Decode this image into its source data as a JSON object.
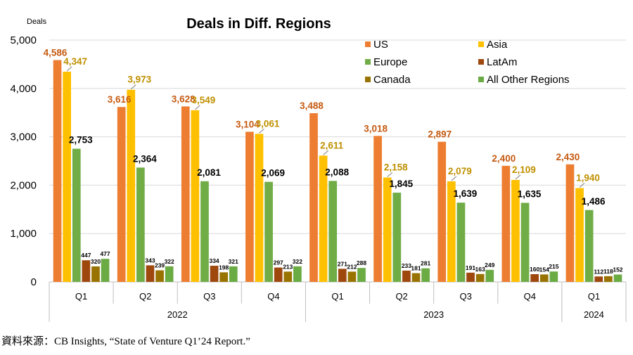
{
  "chart_data": {
    "type": "bar",
    "title": "Deals in Diff. Regions",
    "ylabel": "Deals",
    "ylim": [
      0,
      5000
    ],
    "yticks": [
      "0",
      "1,000",
      "2,000",
      "3,000",
      "4,000",
      "5,000"
    ],
    "grid": true,
    "legend_position": "top-right",
    "groups": [
      {
        "year": "2022",
        "quarters": [
          "Q1",
          "Q2",
          "Q3",
          "Q4"
        ]
      },
      {
        "year": "2023",
        "quarters": [
          "Q1",
          "Q2",
          "Q3",
          "Q4"
        ]
      },
      {
        "year": "2024",
        "quarters": [
          "Q1"
        ]
      }
    ],
    "series": [
      {
        "name": "US",
        "color": "#ED7D31",
        "label_color": "#C55A11",
        "values": [
          4586,
          3616,
          3628,
          3104,
          3488,
          3018,
          2897,
          2400,
          2430
        ],
        "labels": [
          "4,586",
          "3,616",
          "3,628",
          "3,104",
          "3,488",
          "3,018",
          "2,897",
          "2,400",
          "2,430"
        ]
      },
      {
        "name": "Asia",
        "color": "#FFC000",
        "label_color": "#BF9000",
        "values": [
          4347,
          3973,
          3549,
          3061,
          2611,
          2158,
          2079,
          2109,
          1940
        ],
        "labels": [
          "4,347",
          "3,973",
          "3,549",
          "3,061",
          "2,611",
          "2,158",
          "2,079",
          "2,109",
          "1,940"
        ]
      },
      {
        "name": "Europe",
        "color": "#70AD47",
        "label_color": "#000000",
        "values": [
          2753,
          2364,
          2081,
          2069,
          2088,
          1845,
          1639,
          1635,
          1486
        ],
        "labels": [
          "2,753",
          "2,364",
          "2,081",
          "2,069",
          "2,088",
          "1,845",
          "1,639",
          "1,635",
          "1,486"
        ]
      },
      {
        "name": "LatAm",
        "color": "#9E480E",
        "label_color": "#000000",
        "values": [
          447,
          343,
          334,
          297,
          271,
          233,
          191,
          160,
          112
        ],
        "labels": [
          "447",
          "343",
          "334",
          "297",
          "271",
          "233",
          "191",
          "160",
          "112"
        ]
      },
      {
        "name": "Canada",
        "color": "#997300",
        "label_color": "#000000",
        "values": [
          320,
          239,
          198,
          213,
          212,
          181,
          163,
          154,
          118
        ],
        "labels": [
          "320",
          "239",
          "198",
          "213",
          "212",
          "181",
          "163",
          "154",
          "118"
        ]
      },
      {
        "name": "All Other Regions",
        "color": "#6AAB44",
        "label_color": "#000000",
        "values": [
          477,
          322,
          321,
          322,
          288,
          281,
          249,
          215,
          152
        ],
        "labels": [
          "477",
          "322",
          "321",
          "322",
          "288",
          "281",
          "249",
          "215",
          "152"
        ]
      }
    ],
    "source": "資料來源：CB Insights, “State of Venture Q1’24 Report.”"
  }
}
